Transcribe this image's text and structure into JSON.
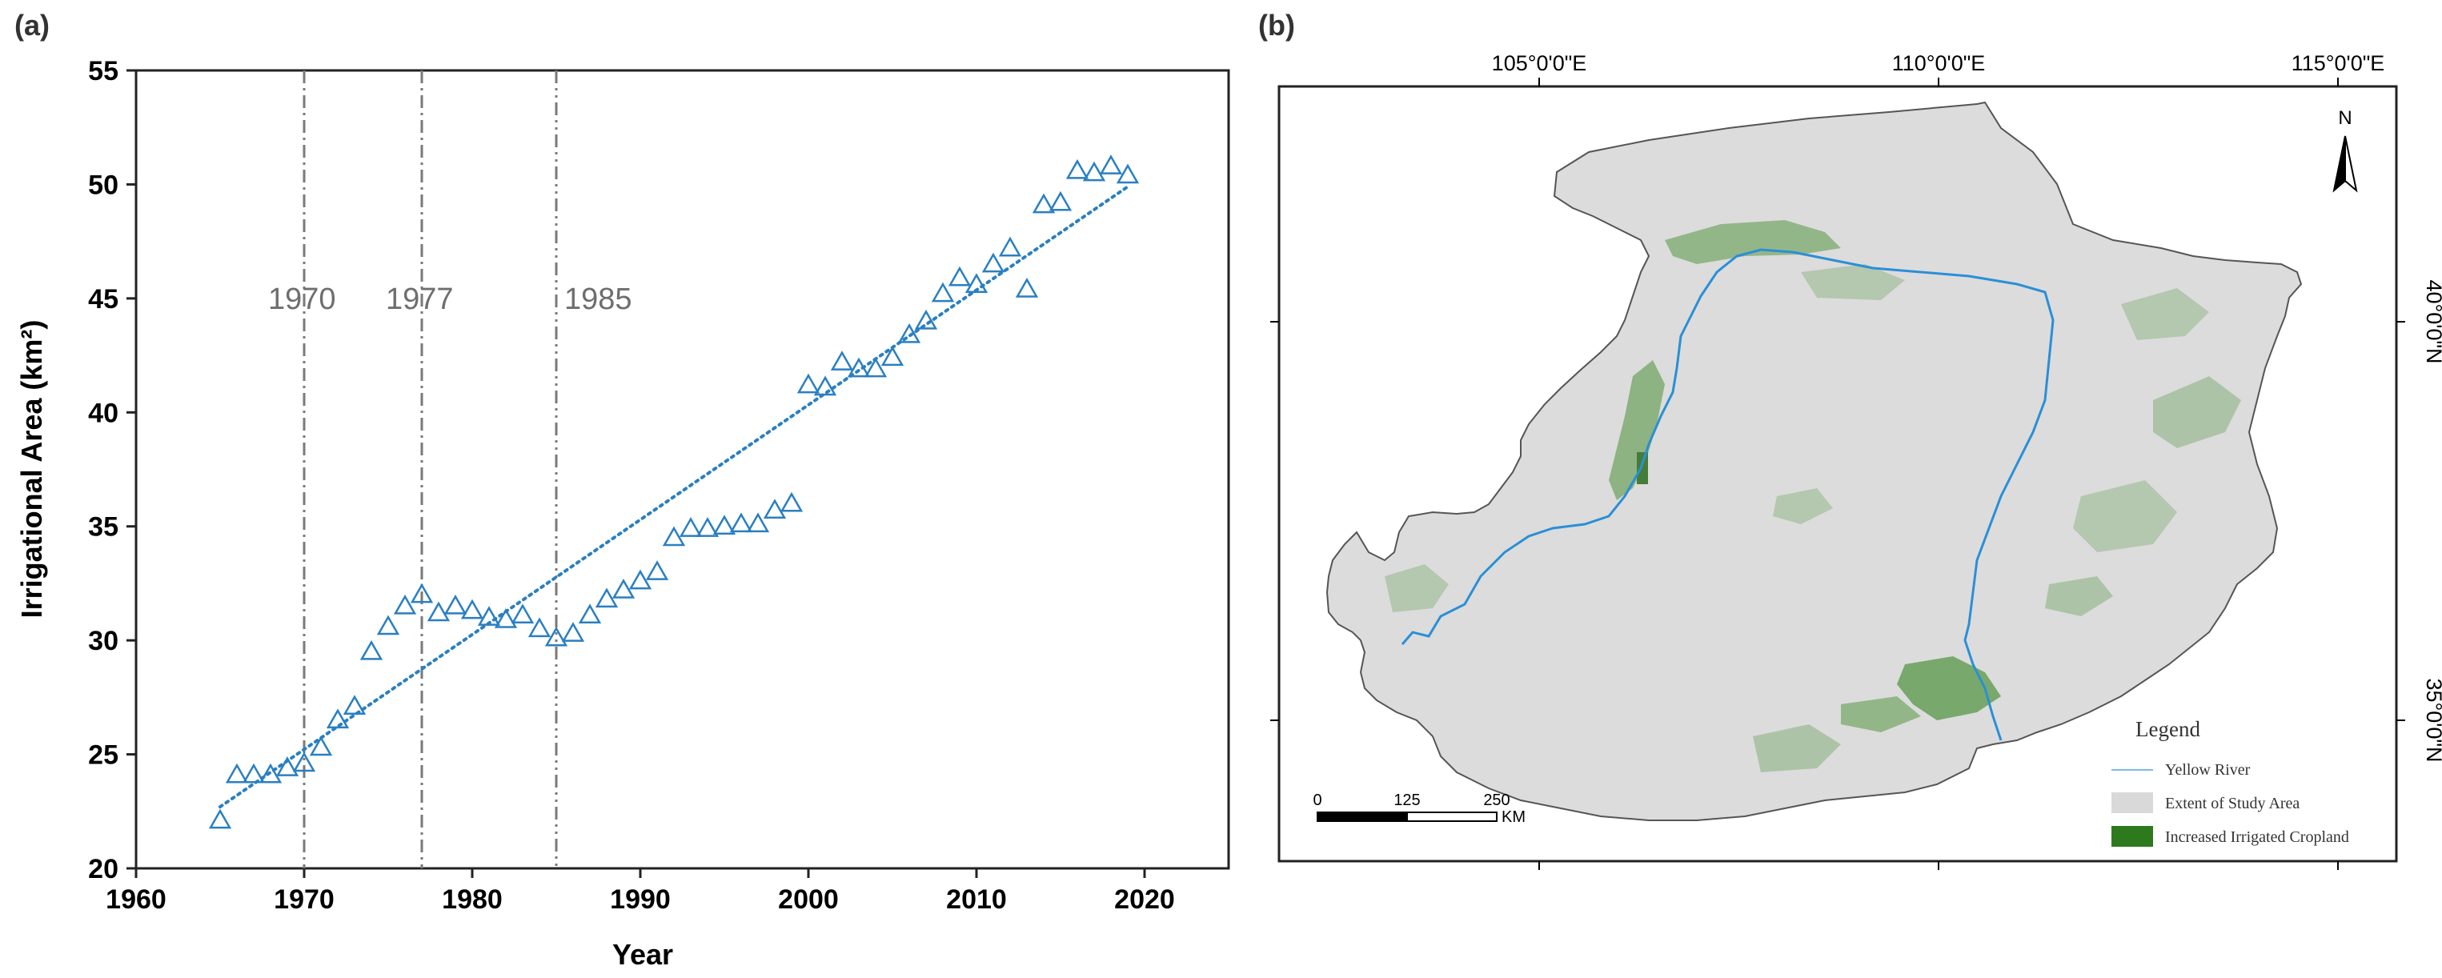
{
  "panel_a": {
    "label": "(a)",
    "events": [
      {
        "year": 1970,
        "label": "1970"
      },
      {
        "year": 1977,
        "label": "1977"
      },
      {
        "year": 1985,
        "label": "1985"
      }
    ]
  },
  "panel_b": {
    "label": "(b)",
    "top_coords": [
      "105°0'0\"E",
      "110°0'0\"E",
      "115°0'0\"E"
    ],
    "right_coords": [
      "40°0'0\"N",
      "35°0'0\"N"
    ],
    "north": "N",
    "legend": {
      "title": "Legend",
      "items": [
        {
          "label": "Yellow River",
          "color": "#7fb8e6"
        },
        {
          "label": "Extent of Study Area",
          "color": "#d9d9d9"
        },
        {
          "label": "Increased Irrigated Cropland",
          "color": "#2d7a1e"
        }
      ]
    },
    "scale": {
      "ticks": [
        "0",
        "125",
        "250"
      ],
      "unit": "KM"
    },
    "colors": {
      "study_area": "#dcdcdc",
      "river": "#2a8fd6",
      "cropland": "#3f8a2a"
    }
  },
  "chart_data": {
    "type": "scatter",
    "xlabel": "Year",
    "ylabel": "Irrigational Area  (km²)",
    "xlim": [
      1960,
      2025
    ],
    "ylim": [
      20,
      55
    ],
    "xticks": [
      1960,
      1970,
      1980,
      1990,
      2000,
      2010,
      2020
    ],
    "yticks": [
      20,
      25,
      30,
      35,
      40,
      45,
      50,
      55
    ],
    "grid": false,
    "marker": "open-triangle",
    "color": "#2a7fc1",
    "trendline": {
      "style": "dotted",
      "x": [
        1965,
        2019
      ],
      "y": [
        22.7,
        49.9
      ]
    },
    "series": [
      {
        "x": [
          1965,
          1966,
          1967,
          1968,
          1969,
          1970,
          1971,
          1972,
          1973,
          1974,
          1975,
          1976,
          1977,
          1978,
          1979,
          1980,
          1981,
          1982,
          1983,
          1984,
          1985,
          1986,
          1987,
          1988,
          1989,
          1990,
          1991,
          1992,
          1993,
          1994,
          1995,
          1996,
          1997,
          1998,
          1999,
          2000,
          2001,
          2002,
          2003,
          2004,
          2005,
          2006,
          2007,
          2008,
          2009,
          2010,
          2011,
          2012,
          2013,
          2014,
          2015,
          2016,
          2017,
          2018,
          2019
        ],
        "y": [
          22.1,
          24.1,
          24.1,
          24.1,
          24.4,
          24.6,
          25.3,
          26.5,
          27.1,
          29.5,
          30.6,
          31.5,
          32.0,
          31.2,
          31.5,
          31.3,
          31.0,
          30.9,
          31.1,
          30.5,
          30.1,
          30.3,
          31.1,
          31.8,
          32.2,
          32.6,
          33.0,
          34.5,
          34.9,
          34.9,
          35.0,
          35.1,
          35.1,
          35.7,
          36.0,
          41.2,
          41.1,
          42.2,
          41.9,
          41.9,
          42.4,
          43.4,
          44.0,
          45.2,
          45.9,
          45.6,
          46.5,
          47.2,
          45.4,
          49.1,
          49.2,
          50.6,
          50.5,
          50.8,
          50.4
        ]
      }
    ]
  }
}
